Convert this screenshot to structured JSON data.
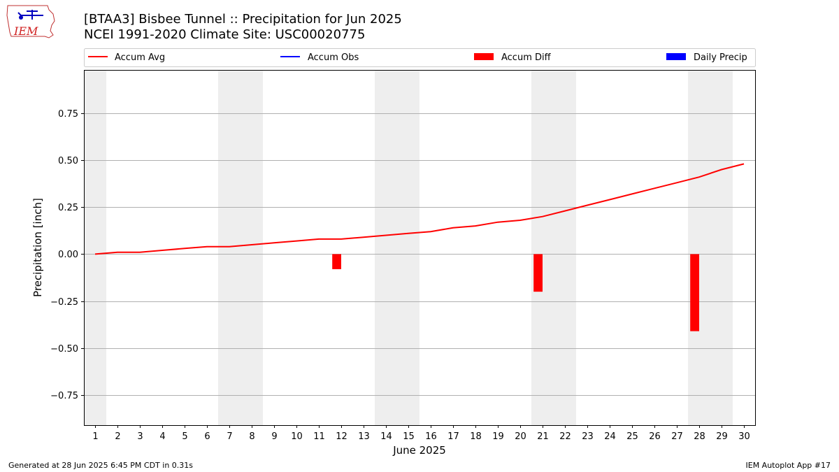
{
  "header": {
    "title_line1": "[BTAA3] Bisbee Tunnel :: Precipitation for Jun 2025",
    "title_line2": "NCEI 1991-2020 Climate Site: USC00020775",
    "logo_text": "IEM"
  },
  "footer": {
    "generated": "Generated at 28 Jun 2025 6:45 PM CDT in 0.31s",
    "app": "IEM Autoplot App #17"
  },
  "chart_data": {
    "type": "line",
    "xlabel": "June 2025",
    "ylabel": "Precipitation [inch]",
    "x": [
      1,
      2,
      3,
      4,
      5,
      6,
      7,
      8,
      9,
      10,
      11,
      12,
      13,
      14,
      15,
      16,
      17,
      18,
      19,
      20,
      21,
      22,
      23,
      24,
      25,
      26,
      27,
      28,
      29,
      30
    ],
    "xlim": [
      0.5,
      30.5
    ],
    "ylim": [
      -0.91,
      0.98
    ],
    "yticks": [
      -0.75,
      -0.5,
      -0.25,
      0.0,
      0.25,
      0.5,
      0.75
    ],
    "ytick_labels": [
      "−0.75",
      "−0.50",
      "−0.25",
      "0.00",
      "0.25",
      "0.50",
      "0.75"
    ],
    "grid": "horizontal",
    "weekend_shading": [
      [
        0.5,
        1.5
      ],
      [
        6.5,
        8.5
      ],
      [
        13.5,
        15.5
      ],
      [
        20.5,
        22.5
      ],
      [
        27.5,
        29.5
      ]
    ],
    "legend_position": "top",
    "legend": [
      {
        "label": "Accum Avg",
        "type": "line",
        "color": "#ff0000"
      },
      {
        "label": "Accum Obs",
        "type": "line",
        "color": "#0000ff"
      },
      {
        "label": "Accum Diff",
        "type": "bar",
        "color": "#ff0000"
      },
      {
        "label": "Daily Precip",
        "type": "bar",
        "color": "#0000ff"
      }
    ],
    "series": [
      {
        "name": "Accum Avg",
        "color": "#ff0000",
        "values": [
          0.0,
          0.01,
          0.01,
          0.02,
          0.03,
          0.04,
          0.04,
          0.05,
          0.06,
          0.07,
          0.08,
          0.08,
          0.09,
          0.1,
          0.11,
          0.12,
          0.14,
          0.15,
          0.17,
          0.18,
          0.2,
          0.23,
          0.26,
          0.29,
          0.32,
          0.35,
          0.38,
          0.41,
          0.45,
          0.48
        ]
      },
      {
        "name": "Accum Diff",
        "color": "#ff0000",
        "bars": [
          {
            "x": 11.8,
            "value": -0.08
          },
          {
            "x": 20.8,
            "value": -0.2
          },
          {
            "x": 27.8,
            "value": -0.41
          }
        ]
      }
    ],
    "colors": {
      "grid": "#b0b0b0",
      "shade": "#eeeeee",
      "frame": "#000000"
    }
  }
}
